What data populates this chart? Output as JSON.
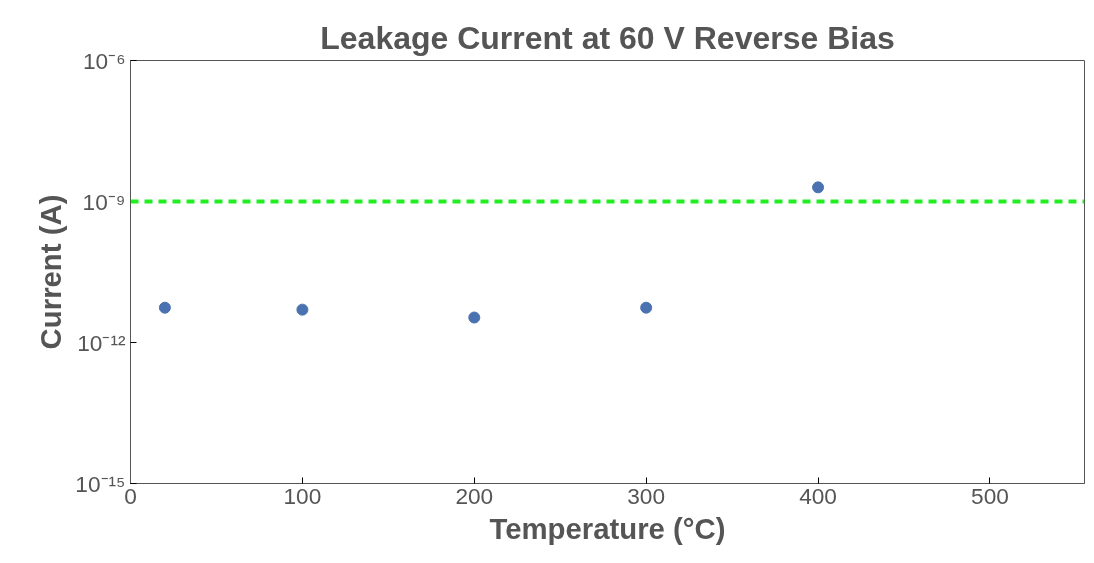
{
  "chart_data": {
    "type": "scatter",
    "title": "Leakage Current at 60 V Reverse Bias",
    "xlabel": "Temperature (°C)",
    "ylabel": "Current (A)",
    "x": [
      20,
      100,
      200,
      300,
      400
    ],
    "series": [
      {
        "color": "#4a72b0",
        "values": [
          5.5e-12,
          5e-12,
          3.4e-12,
          5.5e-12,
          2e-09
        ]
      }
    ],
    "log": "y",
    "xlim": [
      0,
      555
    ],
    "ylim": [
      1e-15,
      1e-06
    ],
    "xticks": [
      0,
      100,
      200,
      300,
      400,
      500
    ],
    "yticks": [
      {
        "value": 1e-15,
        "label": "10⁻¹⁵"
      },
      {
        "value": 1e-12,
        "label": "10⁻¹²"
      },
      {
        "value": 1e-09,
        "label": "10⁻⁹"
      },
      {
        "value": 1e-06,
        "label": "10⁻⁶"
      }
    ],
    "ref_lines": [
      {
        "axis": "y",
        "value": 1e-09,
        "color": "#22ee22",
        "line_style": "dashed"
      }
    ],
    "marker": "circle",
    "grid": false
  }
}
